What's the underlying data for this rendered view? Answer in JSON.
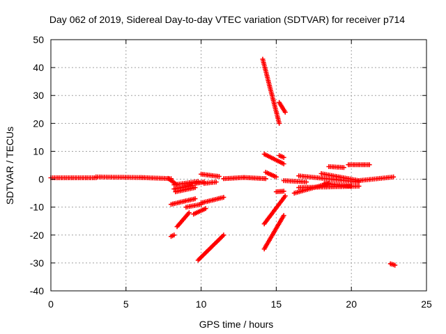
{
  "chart_data": {
    "type": "scatter",
    "title": "Day 062 of 2019, Sidereal Day-to-day VTEC variation (SDTVAR) for receiver p714",
    "xlabel": "GPS time / hours",
    "ylabel": "SDTVAR / TECUs",
    "xlim": [
      0,
      25
    ],
    "ylim": [
      -40,
      50
    ],
    "x_ticks": [
      "0",
      "5",
      "10",
      "15",
      "20",
      "25"
    ],
    "y_ticks": [
      "-40",
      "-30",
      "-20",
      "-10",
      "0",
      "10",
      "20",
      "30",
      "40",
      "50"
    ],
    "grid": true,
    "marker": "plus",
    "color": "#ff0000",
    "segments": [
      {
        "x": [
          0.0,
          3.0
        ],
        "y": [
          0.5,
          0.5
        ]
      },
      {
        "x": [
          3.0,
          6.0
        ],
        "y": [
          0.8,
          0.6
        ]
      },
      {
        "x": [
          6.0,
          8.0
        ],
        "y": [
          0.6,
          0.2
        ]
      },
      {
        "x": [
          7.8,
          8.4
        ],
        "y": [
          0.3,
          -2.0
        ]
      },
      {
        "x": [
          8.2,
          9.8
        ],
        "y": [
          -2.0,
          -0.8
        ]
      },
      {
        "x": [
          8.2,
          9.4
        ],
        "y": [
          -3.5,
          -2.2
        ]
      },
      {
        "x": [
          8.3,
          9.6
        ],
        "y": [
          -4.5,
          -3.0
        ]
      },
      {
        "x": [
          8.0,
          9.6
        ],
        "y": [
          -9.0,
          -7.0
        ]
      },
      {
        "x": [
          8.0,
          8.2
        ],
        "y": [
          -20.5,
          -20.0
        ]
      },
      {
        "x": [
          8.4,
          9.2
        ],
        "y": [
          -17.0,
          -12.0
        ]
      },
      {
        "x": [
          9.0,
          10.0
        ],
        "y": [
          -10.0,
          -9.0
        ]
      },
      {
        "x": [
          9.5,
          10.3
        ],
        "y": [
          -12.5,
          -10.5
        ]
      },
      {
        "x": [
          9.6,
          10.2
        ],
        "y": [
          -1.5,
          -1.0
        ]
      },
      {
        "x": [
          10.0,
          11.2
        ],
        "y": [
          1.8,
          1.0
        ]
      },
      {
        "x": [
          10.0,
          11.5
        ],
        "y": [
          -8.5,
          -6.5
        ]
      },
      {
        "x": [
          10.2,
          11.0
        ],
        "y": [
          -1.5,
          -1.0
        ]
      },
      {
        "x": [
          9.8,
          11.5
        ],
        "y": [
          -29.0,
          -20.0
        ]
      },
      {
        "x": [
          11.5,
          12.8
        ],
        "y": [
          0.2,
          0.6
        ]
      },
      {
        "x": [
          12.9,
          14.3
        ],
        "y": [
          0.6,
          0.2
        ]
      },
      {
        "x": [
          14.1,
          15.2
        ],
        "y": [
          43.0,
          20.0
        ]
      },
      {
        "x": [
          15.2,
          15.6
        ],
        "y": [
          27.5,
          24.0
        ]
      },
      {
        "x": [
          14.2,
          15.5
        ],
        "y": [
          9.0,
          5.5
        ]
      },
      {
        "x": [
          14.3,
          15.0
        ],
        "y": [
          2.5,
          0.8
        ]
      },
      {
        "x": [
          15.2,
          15.5
        ],
        "y": [
          8.5,
          7.8
        ]
      },
      {
        "x": [
          14.2,
          15.5
        ],
        "y": [
          -25.0,
          -13.0
        ]
      },
      {
        "x": [
          14.2,
          15.6
        ],
        "y": [
          -16.0,
          -6.0
        ]
      },
      {
        "x": [
          15.0,
          15.5
        ],
        "y": [
          -4.5,
          -4.3
        ]
      },
      {
        "x": [
          15.5,
          17.0
        ],
        "y": [
          -0.5,
          -1.0
        ]
      },
      {
        "x": [
          16.2,
          18.5
        ],
        "y": [
          -5.0,
          -1.5
        ]
      },
      {
        "x": [
          16.5,
          20.5
        ],
        "y": [
          -3.0,
          -2.5
        ]
      },
      {
        "x": [
          16.5,
          20.5
        ],
        "y": [
          1.2,
          -1.0
        ]
      },
      {
        "x": [
          18.0,
          20.5
        ],
        "y": [
          2.0,
          -0.5
        ]
      },
      {
        "x": [
          18.2,
          20.0
        ],
        "y": [
          -1.5,
          -2.5
        ]
      },
      {
        "x": [
          18.5,
          19.5
        ],
        "y": [
          4.5,
          4.2
        ]
      },
      {
        "x": [
          19.8,
          21.2
        ],
        "y": [
          5.2,
          5.2
        ]
      },
      {
        "x": [
          20.5,
          22.8
        ],
        "y": [
          -0.5,
          0.8
        ]
      },
      {
        "x": [
          22.6,
          22.9
        ],
        "y": [
          -30.3,
          -30.8
        ]
      }
    ]
  }
}
